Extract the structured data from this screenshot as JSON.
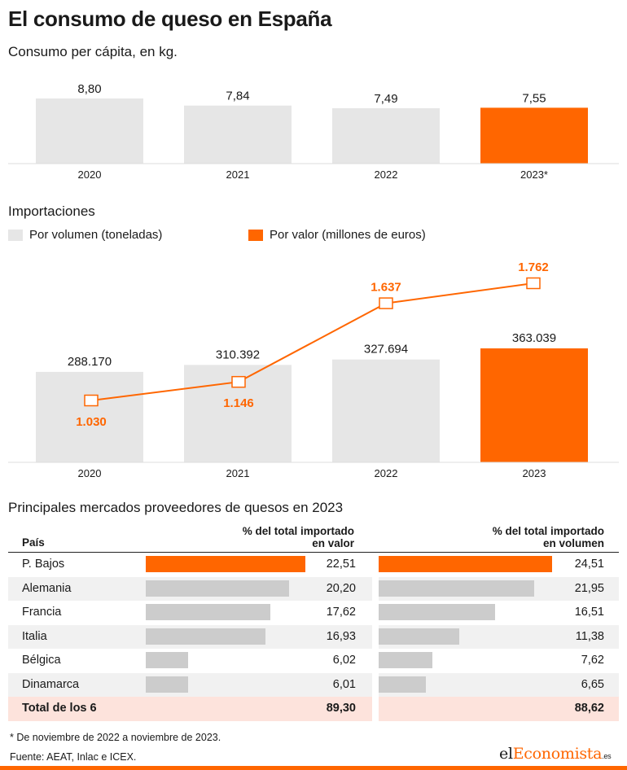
{
  "title": "El consumo de queso en España",
  "subtitle": "Consumo per cápita, en kg.",
  "colors": {
    "highlight": "#ff6600",
    "neutral": "#e6e6e6",
    "table_bar": "#cccccc"
  },
  "chart_data": [
    {
      "type": "bar",
      "categories": [
        "2020",
        "2021",
        "2022",
        "2023*"
      ],
      "values": [
        8.8,
        7.84,
        7.49,
        7.55
      ],
      "value_labels": [
        "8,80",
        "7,84",
        "7,49",
        "7,55"
      ],
      "highlight_index": 3,
      "title": "Consumo per cápita, en kg."
    },
    {
      "type": "bar+line",
      "title": "Importaciones",
      "categories": [
        "2020",
        "2021",
        "2022",
        "2023"
      ],
      "legend": [
        "Por volumen (toneladas)",
        "Por valor (millones de euros)"
      ],
      "series": [
        {
          "name": "Por volumen (toneladas)",
          "type": "bar",
          "values": [
            288170,
            310392,
            327694,
            363039
          ],
          "labels": [
            "288.170",
            "310.392",
            "327.694",
            "363.039"
          ]
        },
        {
          "name": "Por valor (millones de euros)",
          "type": "line",
          "values": [
            1030,
            1146,
            1637,
            1762
          ],
          "labels": [
            "1.030",
            "1.146",
            "1.637",
            "1.762"
          ]
        }
      ],
      "highlight_index": 3
    },
    {
      "type": "table",
      "title": "Principales mercados proveedores de quesos en 2023",
      "columns": [
        "País",
        "% del total importado en valor",
        "% del total importado en volumen"
      ],
      "rows": [
        {
          "country": "P. Bajos",
          "valor": 22.51,
          "valor_label": "22,51",
          "volumen": 24.51,
          "volumen_label": "24,51",
          "highlight": true
        },
        {
          "country": "Alemania",
          "valor": 20.2,
          "valor_label": "20,20",
          "volumen": 21.95,
          "volumen_label": "21,95"
        },
        {
          "country": "Francia",
          "valor": 17.62,
          "valor_label": "17,62",
          "volumen": 16.51,
          "volumen_label": "16,51"
        },
        {
          "country": "Italia",
          "valor": 16.93,
          "valor_label": "16,93",
          "volumen": 11.38,
          "volumen_label": "11,38"
        },
        {
          "country": "Bélgica",
          "valor": 6.02,
          "valor_label": "6,02",
          "volumen": 7.62,
          "volumen_label": "7,62"
        },
        {
          "country": "Dinamarca",
          "valor": 6.01,
          "valor_label": "6,01",
          "volumen": 6.65,
          "volumen_label": "6,65"
        }
      ],
      "total": {
        "label": "Total de los 6",
        "valor_label": "89,30",
        "volumen_label": "88,62"
      }
    }
  ],
  "labels": {
    "section_imports": "Importaciones",
    "legend_volume": "Por volumen (toneladas)",
    "legend_value": "Por valor (millones de euros)",
    "section_markets": "Principales mercados proveedores de quesos en 2023",
    "col_country": "País",
    "col_valor_l1": "% del total importado",
    "col_valor_l2": "en valor",
    "col_vol_l1": "% del total importado",
    "col_vol_l2": "en volumen"
  },
  "footnote": "* De noviembre de 2022 a noviembre de 2023.",
  "source": "Fuente: AEAT, Inlac e ICEX.",
  "logo": {
    "part1": "el",
    "part2": "Economista",
    "part3": ".es"
  }
}
